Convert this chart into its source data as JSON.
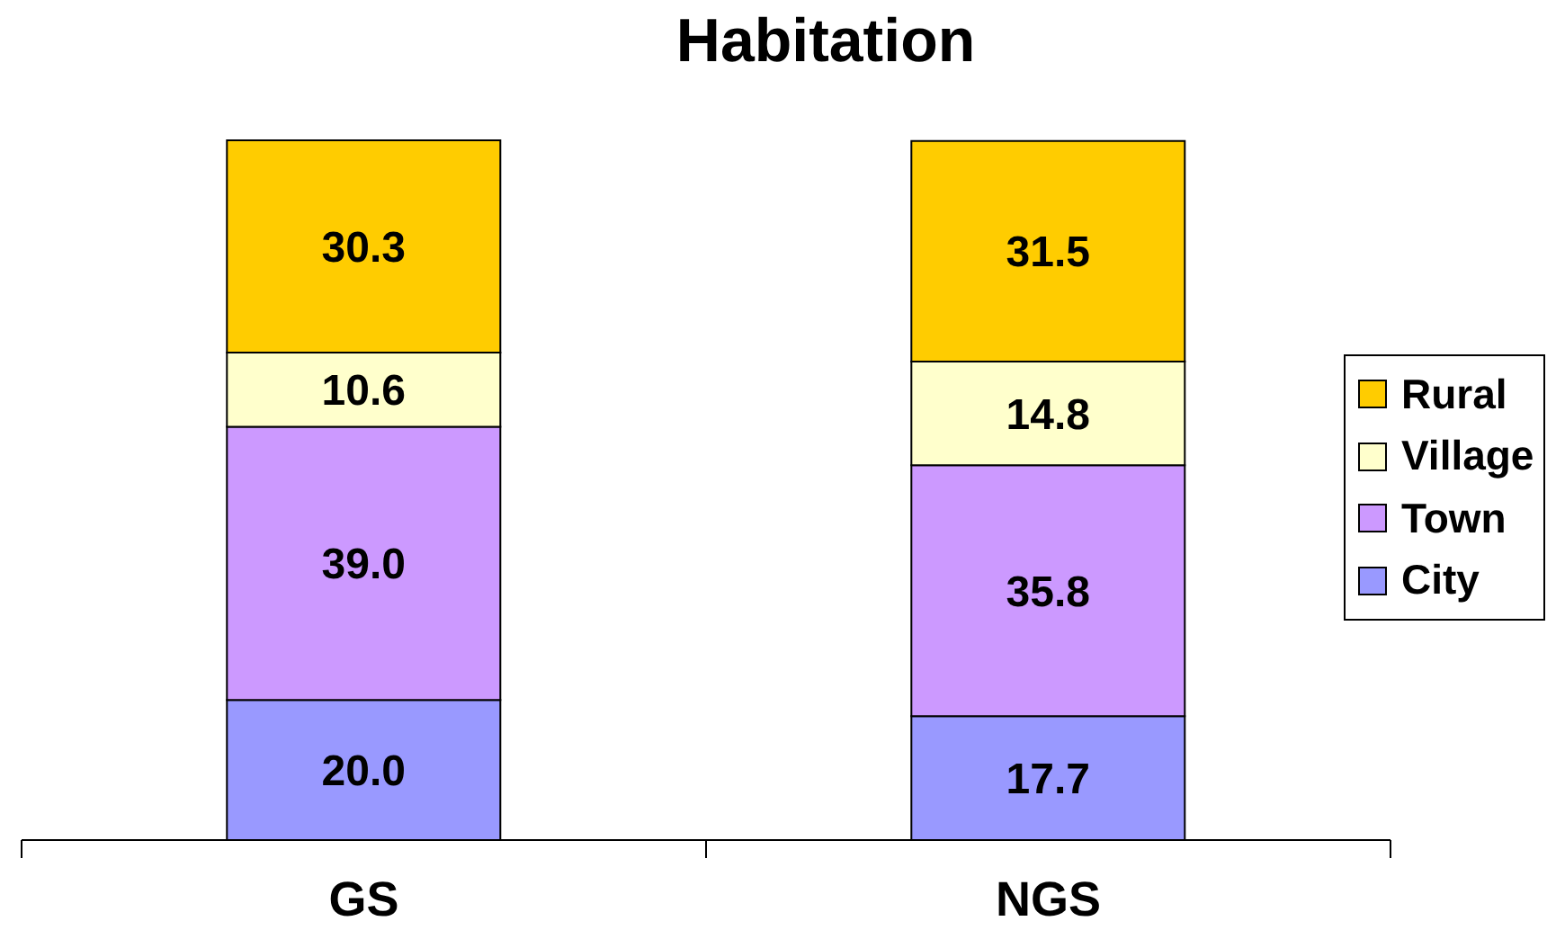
{
  "chart_data": {
    "type": "bar",
    "title": "Habitation",
    "categories": [
      "GS",
      "NGS"
    ],
    "stacked": true,
    "legend": "right",
    "series": [
      {
        "name": "City",
        "color": "#9999ff",
        "values": [
          20.0,
          17.7
        ],
        "value_labels": [
          "20.0",
          "17.7"
        ]
      },
      {
        "name": "Town",
        "color": "#cc99ff",
        "values": [
          39.0,
          35.8
        ],
        "value_labels": [
          "39.0",
          "35.8"
        ]
      },
      {
        "name": "Village",
        "color": "#ffffcc",
        "values": [
          10.6,
          14.8
        ],
        "value_labels": [
          "10.6",
          "14.8"
        ]
      },
      {
        "name": "Rural",
        "color": "#ffcc00",
        "values": [
          30.3,
          31.5
        ],
        "value_labels": [
          "30.3",
          "31.5"
        ]
      }
    ]
  }
}
